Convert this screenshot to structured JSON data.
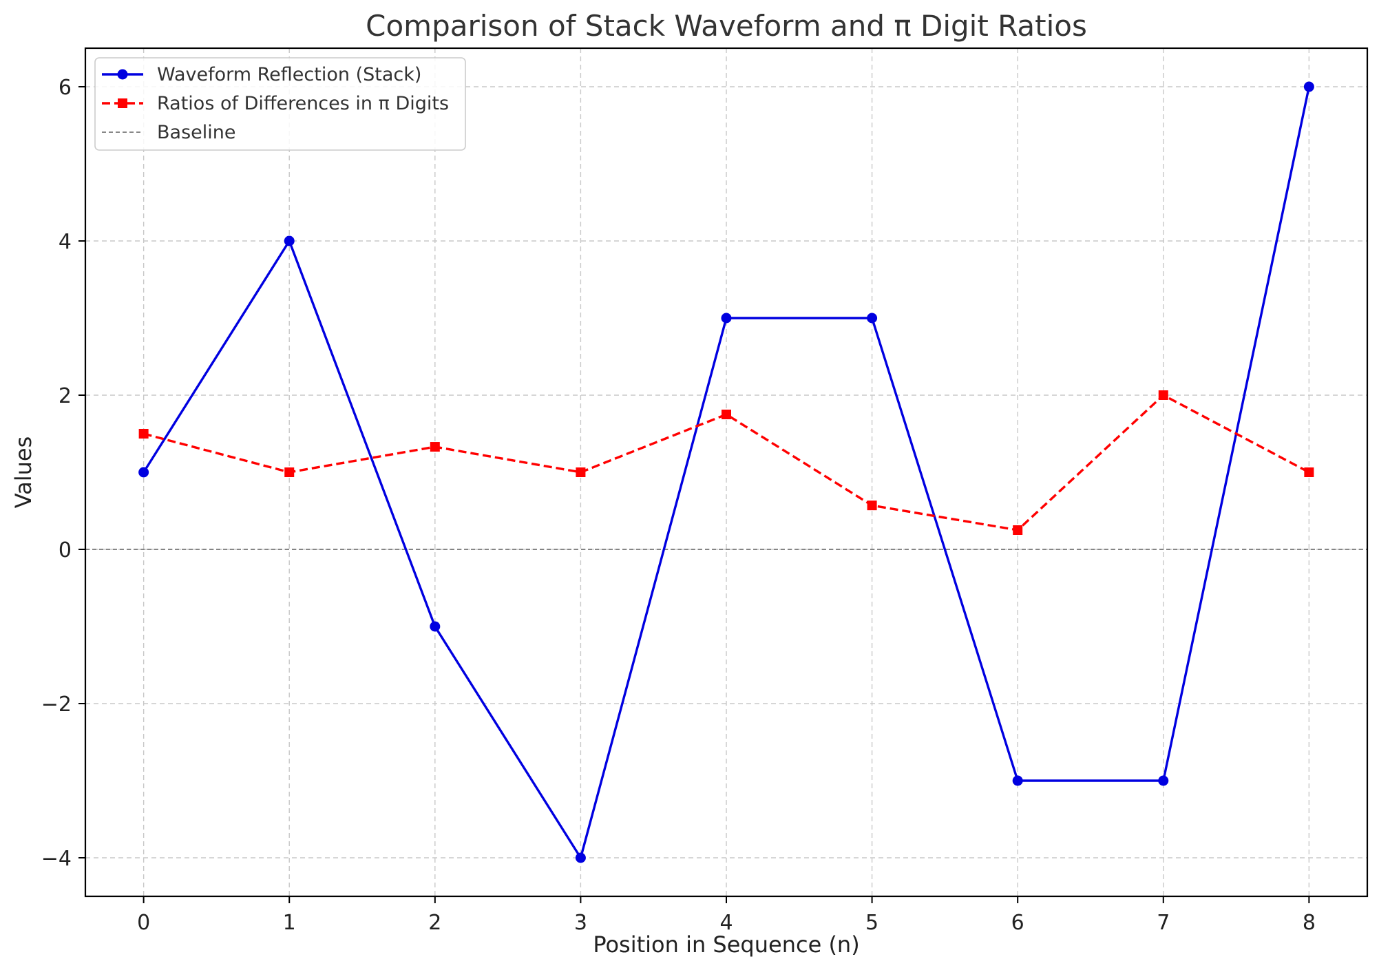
{
  "chart_data": {
    "type": "line",
    "title": "Comparison of Stack Waveform and π Digit Ratios",
    "xlabel": "Position in Sequence (n)",
    "ylabel": "Values",
    "xlim": [
      -0.4,
      8.4
    ],
    "ylim": [
      -4.5,
      6.5
    ],
    "x_ticks": [
      0,
      1,
      2,
      3,
      4,
      5,
      6,
      7,
      8
    ],
    "y_ticks": [
      -4,
      -2,
      0,
      2,
      4,
      6
    ],
    "y_tick_labels": [
      "−4",
      "−2",
      "0",
      "2",
      "4",
      "6"
    ],
    "grid": true,
    "legend_position": "top-left",
    "series": [
      {
        "name": "Waveform Reflection (Stack)",
        "x": [
          0,
          1,
          2,
          3,
          4,
          5,
          6,
          7,
          8
        ],
        "values": [
          1,
          4,
          -1,
          -4,
          3,
          3,
          -3,
          -3,
          6
        ],
        "color": "#0000e0",
        "line_style": "solid",
        "marker": "circle"
      },
      {
        "name": "Ratios of Differences in π Digits",
        "x": [
          0,
          1,
          2,
          3,
          4,
          5,
          6,
          7,
          8
        ],
        "values": [
          1.5,
          1.0,
          1.33,
          1.0,
          1.75,
          0.57,
          0.25,
          2.0,
          1.0
        ],
        "color": "#ff0000",
        "line_style": "dashed",
        "marker": "square"
      }
    ],
    "reference_lines": [
      {
        "name": "Baseline",
        "y": 0,
        "color": "#777777",
        "line_style": "dashed"
      }
    ]
  }
}
